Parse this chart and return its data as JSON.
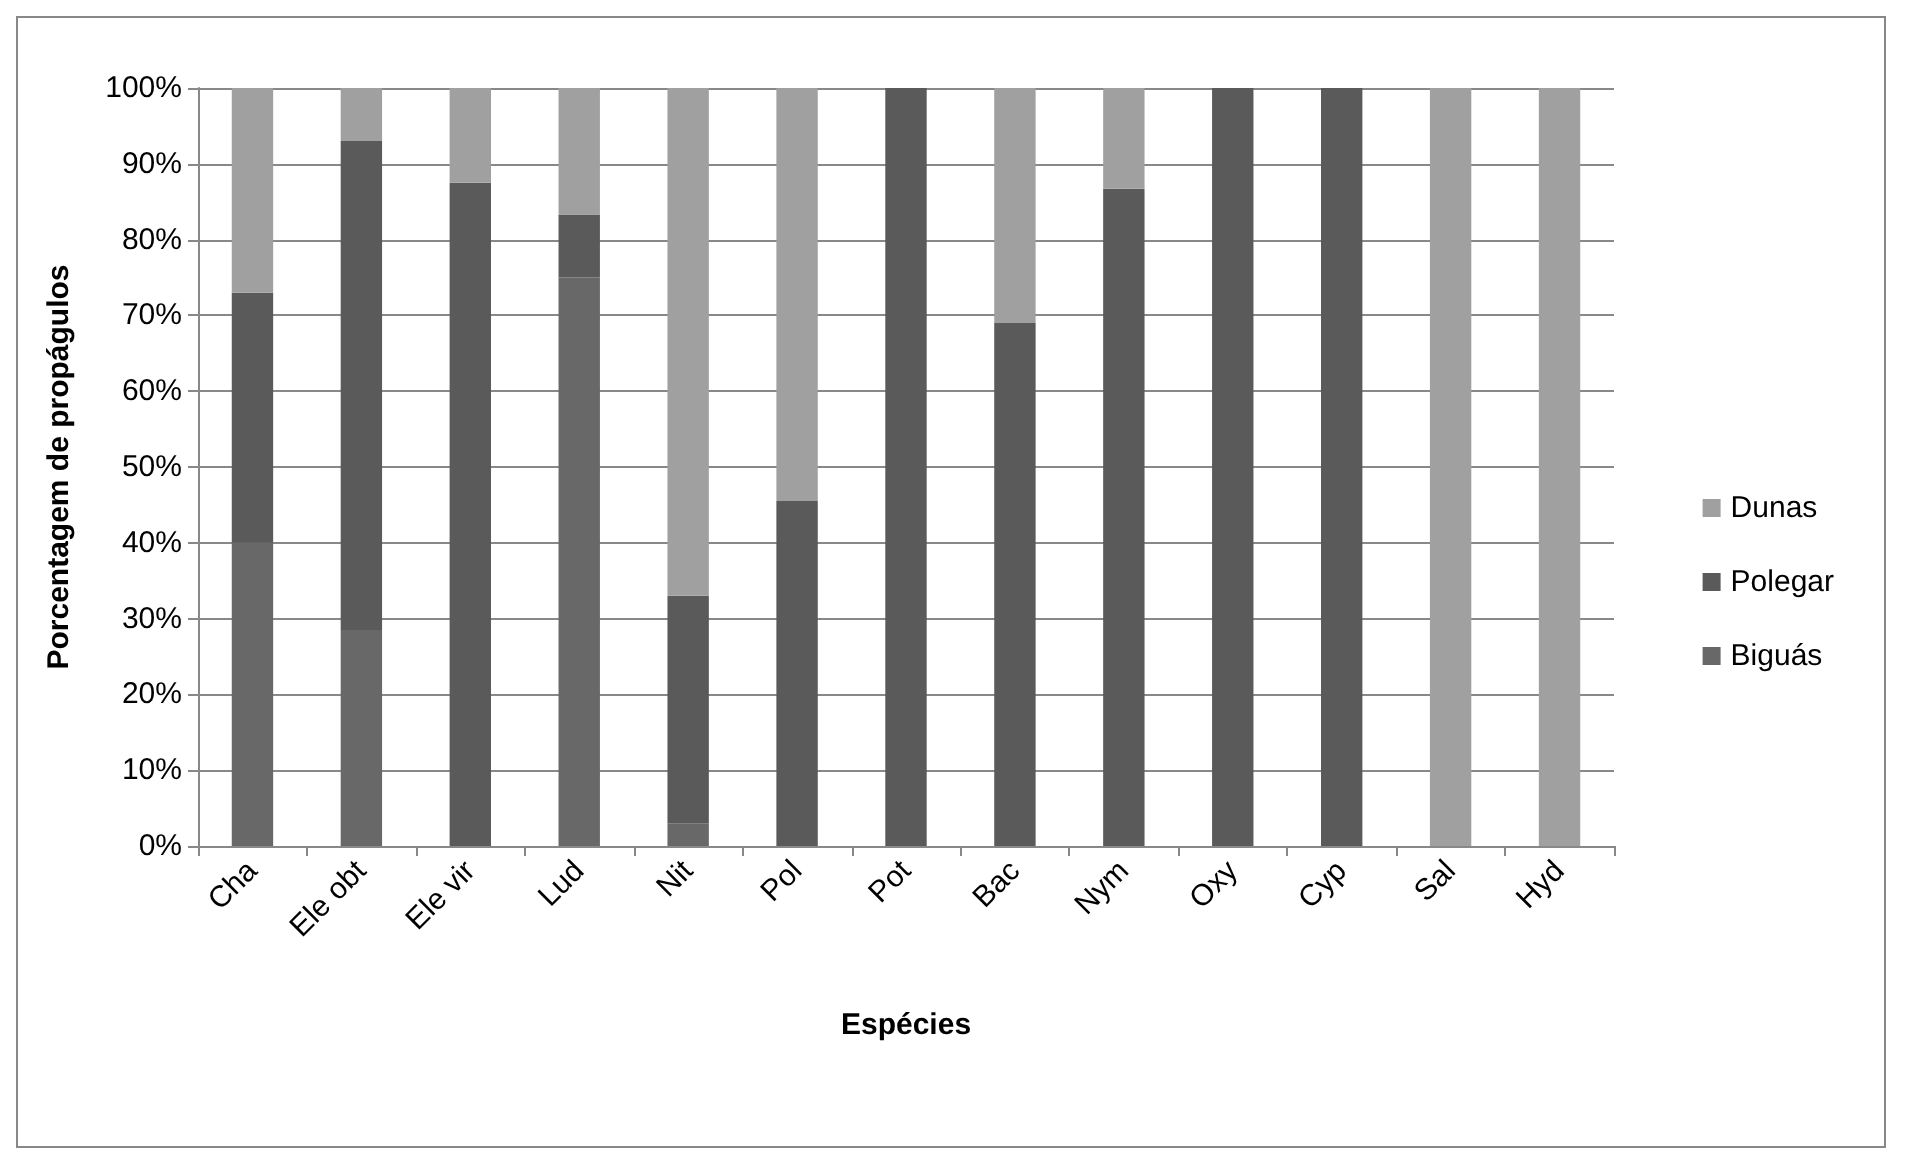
{
  "chart_data": {
    "type": "bar",
    "stacked": true,
    "xlabel": "Espécies",
    "ylabel": "Porcentagem de propágulos",
    "categories": [
      "Cha",
      "Ele obt",
      "Ele vir",
      "Lud",
      "Nit",
      "Pol",
      "Pot",
      "Bac",
      "Nym",
      "Oxy",
      "Cyp",
      "Sal",
      "Hyd"
    ],
    "series": [
      {
        "name": "Biguás",
        "color": "#686868",
        "values": [
          40,
          28.5,
          0,
          75,
          3,
          0,
          0,
          0,
          0,
          0,
          0,
          0,
          0
        ]
      },
      {
        "name": "Polegar",
        "color": "#5a5a5a",
        "values": [
          33,
          64.5,
          87.5,
          8.3,
          30,
          45.5,
          100,
          69,
          86.7,
          100,
          100,
          0,
          0
        ]
      },
      {
        "name": "Dunas",
        "color": "#a0a0a0",
        "values": [
          27,
          7,
          12.5,
          16.7,
          67,
          54.5,
          0,
          31,
          13.3,
          0,
          0,
          100,
          100
        ]
      }
    ],
    "ylim": [
      0,
      100
    ],
    "yticks": [
      {
        "value": 0,
        "label": "0%"
      },
      {
        "value": 10,
        "label": "10%"
      },
      {
        "value": 20,
        "label": "20%"
      },
      {
        "value": 30,
        "label": "30%"
      },
      {
        "value": 40,
        "label": "40%"
      },
      {
        "value": 50,
        "label": "50%"
      },
      {
        "value": 60,
        "label": "60%"
      },
      {
        "value": 70,
        "label": "70%"
      },
      {
        "value": 80,
        "label": "80%"
      },
      {
        "value": 90,
        "label": "90%"
      },
      {
        "value": 100,
        "label": "100%"
      }
    ],
    "grid": "y",
    "legend": "right"
  }
}
